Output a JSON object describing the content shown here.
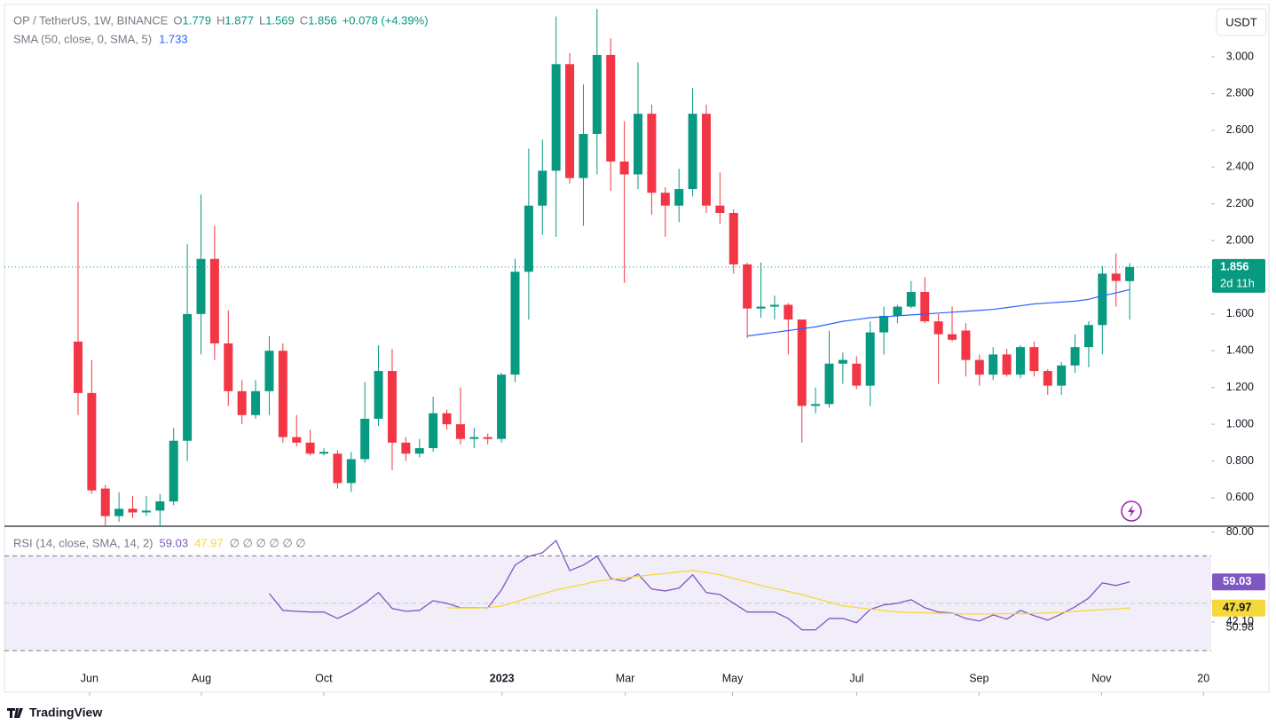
{
  "chart_data": [
    {
      "type": "candlestick",
      "title": "OP / TetherUS, 1W, BINANCE",
      "ohlc_labels": [
        "O",
        "H",
        "L",
        "C"
      ],
      "change": "+0.078 (+4.39%)",
      "currency": "USDT",
      "countdown": "2d 11h",
      "up_color": "#089981",
      "down_color": "#f23645",
      "open": [
        1.45,
        1.17,
        0.65,
        0.5,
        0.54,
        0.52,
        0.53,
        0.58,
        0.91,
        1.6,
        1.9,
        1.44,
        1.18,
        1.05,
        1.18,
        1.4,
        0.93,
        0.9,
        0.84,
        0.84,
        0.68,
        0.81,
        1.03,
        1.29,
        0.9,
        0.84,
        0.87,
        1.06,
        1.0,
        0.92,
        0.93,
        0.92,
        1.27,
        1.83,
        2.19,
        2.38,
        2.96,
        2.34,
        2.58,
        3.01,
        2.43,
        2.36,
        2.69,
        2.26,
        2.19,
        2.28,
        2.69,
        2.19,
        2.15,
        1.87,
        1.63,
        1.64,
        1.65,
        1.57,
        1.1,
        1.11,
        1.33,
        1.33,
        1.21,
        1.5,
        1.59,
        1.64,
        1.72,
        1.56,
        1.49,
        1.51,
        1.35,
        1.27,
        1.38,
        1.27,
        1.42,
        1.29,
        1.21,
        1.32,
        1.42,
        1.54,
        1.82,
        1.779
      ],
      "high": [
        2.21,
        1.35,
        0.67,
        0.63,
        0.61,
        0.61,
        0.62,
        0.98,
        1.98,
        2.25,
        2.08,
        1.62,
        1.24,
        1.24,
        1.48,
        1.44,
        1.05,
        0.97,
        0.87,
        0.86,
        0.85,
        1.23,
        1.43,
        1.41,
        0.93,
        0.92,
        1.15,
        1.08,
        1.2,
        0.98,
        0.95,
        1.28,
        1.9,
        2.5,
        2.55,
        3.22,
        3.02,
        2.85,
        3.26,
        3.1,
        2.65,
        2.97,
        2.74,
        2.29,
        2.39,
        2.83,
        2.74,
        2.37,
        2.17,
        1.88,
        1.88,
        1.7,
        1.66,
        1.57,
        1.2,
        1.51,
        1.39,
        1.37,
        1.56,
        1.64,
        1.65,
        1.78,
        1.8,
        1.6,
        1.64,
        1.55,
        1.38,
        1.42,
        1.41,
        1.43,
        1.45,
        1.3,
        1.34,
        1.49,
        1.56,
        1.86,
        1.93,
        1.877
      ],
      "low": [
        1.05,
        0.62,
        0.45,
        0.47,
        0.49,
        0.5,
        0.45,
        0.56,
        0.8,
        1.38,
        1.35,
        1.1,
        1.0,
        1.03,
        1.05,
        0.9,
        0.88,
        0.83,
        0.83,
        0.65,
        0.63,
        0.79,
        0.99,
        0.75,
        0.8,
        0.82,
        0.85,
        0.97,
        0.89,
        0.87,
        0.89,
        0.9,
        1.23,
        1.57,
        2.03,
        2.02,
        2.31,
        2.08,
        2.36,
        2.27,
        1.77,
        2.28,
        2.14,
        2.02,
        2.1,
        2.24,
        2.15,
        2.09,
        1.82,
        1.47,
        1.58,
        1.57,
        1.38,
        0.9,
        1.06,
        1.09,
        1.22,
        1.19,
        1.1,
        1.38,
        1.55,
        1.63,
        1.55,
        1.22,
        1.45,
        1.26,
        1.21,
        1.24,
        1.26,
        1.25,
        1.26,
        1.16,
        1.16,
        1.28,
        1.31,
        1.38,
        1.64,
        1.569
      ],
      "close": [
        1.17,
        0.64,
        0.5,
        0.54,
        0.52,
        0.53,
        0.58,
        0.91,
        1.6,
        1.9,
        1.44,
        1.18,
        1.05,
        1.18,
        1.4,
        0.93,
        0.9,
        0.84,
        0.85,
        0.68,
        0.81,
        1.03,
        1.29,
        0.9,
        0.84,
        0.87,
        1.06,
        1.0,
        0.92,
        0.93,
        0.92,
        1.27,
        1.83,
        2.19,
        2.38,
        2.96,
        2.34,
        2.58,
        3.01,
        2.43,
        2.36,
        2.69,
        2.26,
        2.19,
        2.28,
        2.69,
        2.19,
        2.15,
        1.87,
        1.63,
        1.64,
        1.65,
        1.57,
        1.1,
        1.11,
        1.33,
        1.35,
        1.21,
        1.5,
        1.59,
        1.64,
        1.72,
        1.56,
        1.49,
        1.46,
        1.35,
        1.27,
        1.38,
        1.27,
        1.42,
        1.29,
        1.21,
        1.32,
        1.42,
        1.54,
        1.82,
        1.78,
        1.856
      ],
      "overlay": {
        "name": "SMA (50, close, 0, SMA, 5)",
        "color": "#2962ff",
        "values": [
          null,
          null,
          null,
          null,
          null,
          null,
          null,
          null,
          null,
          null,
          null,
          null,
          null,
          null,
          null,
          null,
          null,
          null,
          null,
          null,
          null,
          null,
          null,
          null,
          null,
          null,
          null,
          null,
          null,
          null,
          null,
          null,
          null,
          null,
          null,
          null,
          null,
          null,
          null,
          null,
          null,
          null,
          null,
          null,
          null,
          null,
          null,
          null,
          null,
          1.48,
          1.49,
          1.5,
          1.51,
          1.52,
          1.53,
          1.545,
          1.56,
          1.57,
          1.58,
          1.585,
          1.59,
          1.595,
          1.6,
          1.605,
          1.61,
          1.615,
          1.62,
          1.625,
          1.635,
          1.645,
          1.655,
          1.66,
          1.665,
          1.67,
          1.68,
          1.7,
          1.715,
          1.733
        ]
      },
      "xlim": [
        -5.39,
        82.97
      ],
      "xticks": [
        {
          "value": 0.84,
          "label": "Jun"
        },
        {
          "value": 9.03,
          "label": "Aug"
        },
        {
          "value": 17.99,
          "label": "Oct"
        },
        {
          "value": 31.04,
          "label": "2023"
        },
        {
          "value": 40.06,
          "label": "Mar"
        },
        {
          "value": 47.92,
          "label": "May"
        },
        {
          "value": 57.01,
          "label": "Jul"
        },
        {
          "value": 65.97,
          "label": "Sep"
        },
        {
          "value": 74.94,
          "label": "Nov"
        },
        {
          "value": 82.4,
          "label": "20"
        }
      ],
      "ylim": [
        0.445,
        3.285
      ],
      "yticks": [
        {
          "value": 0.6,
          "label": "0.600"
        },
        {
          "value": 0.8,
          "label": "0.800"
        },
        {
          "value": 1.0,
          "label": "1.000"
        },
        {
          "value": 1.2,
          "label": "1.200"
        },
        {
          "value": 1.4,
          "label": "1.400"
        },
        {
          "value": 1.6,
          "label": "1.600"
        },
        {
          "value": 1.8,
          "label": "1.800"
        },
        {
          "value": 2.0,
          "label": "2.000"
        },
        {
          "value": 2.2,
          "label": "2.200"
        },
        {
          "value": 2.4,
          "label": "2.400"
        },
        {
          "value": 2.6,
          "label": "2.600"
        },
        {
          "value": 2.8,
          "label": "2.800"
        },
        {
          "value": 3.0,
          "label": "3.000"
        }
      ]
    },
    {
      "type": "line",
      "title": "RSI (14, close, SMA, 14, 2)",
      "legend_extra": "∅ ∅ ∅ ∅ ∅ ∅",
      "band": [
        30,
        70
      ],
      "band_color": "#7e57c2",
      "series": [
        {
          "color": "#7e57c2",
          "values": [
            null,
            null,
            null,
            null,
            null,
            null,
            null,
            null,
            null,
            null,
            null,
            null,
            null,
            null,
            54.1,
            47,
            46.6,
            46.3,
            46.3,
            43.6,
            46.3,
            50,
            54.5,
            47.8,
            46.6,
            47,
            51.1,
            50,
            48.1,
            48.1,
            48.1,
            55.6,
            66.1,
            69.8,
            71.3,
            76.5,
            63.8,
            66.1,
            69.8,
            60.5,
            59.3,
            62.3,
            56,
            55.2,
            56.4,
            62,
            54.5,
            53.7,
            50,
            46.3,
            46.3,
            46.3,
            43.6,
            38.8,
            38.8,
            43.6,
            43.6,
            41.8,
            47.4,
            49.3,
            50,
            51.5,
            48.1,
            46.3,
            45.9,
            43.6,
            42.5,
            45.1,
            43.3,
            47,
            44.8,
            42.9,
            45.5,
            48.5,
            52.2,
            58.6,
            57.5,
            59.03
          ]
        },
        {
          "color": "#f5d83b",
          "values": [
            null,
            null,
            null,
            null,
            null,
            null,
            null,
            null,
            null,
            null,
            null,
            null,
            null,
            null,
            null,
            null,
            null,
            null,
            null,
            null,
            null,
            null,
            null,
            null,
            null,
            null,
            null,
            48.1,
            48.0,
            48.0,
            48.2,
            48.8,
            50.5,
            52.3,
            53.9,
            55.6,
            56.8,
            58.0,
            59.3,
            60.0,
            60.7,
            61.4,
            62.0,
            62.6,
            63.2,
            63.8,
            63.0,
            62.0,
            60.5,
            59.0,
            57.5,
            56.2,
            55.0,
            53.7,
            52.1,
            50.5,
            48.9,
            48.2,
            47.5,
            46.9,
            46.3,
            46.1,
            46.0,
            45.8,
            45.7,
            45.5,
            45.5,
            45.5,
            45.6,
            45.6,
            45.7,
            45.9,
            46.2,
            46.6,
            47.0,
            47.3,
            47.6,
            47.97
          ]
        }
      ],
      "xlim": [
        -5.39,
        82.97
      ],
      "ylim": [
        12.5,
        82.5
      ],
      "yticks": [
        {
          "value": 80,
          "label": "80.00"
        },
        {
          "value": 50.98,
          "label": "50.98"
        },
        {
          "value": 42.1,
          "label": "42.10"
        }
      ]
    }
  ],
  "brand": "TradingView"
}
